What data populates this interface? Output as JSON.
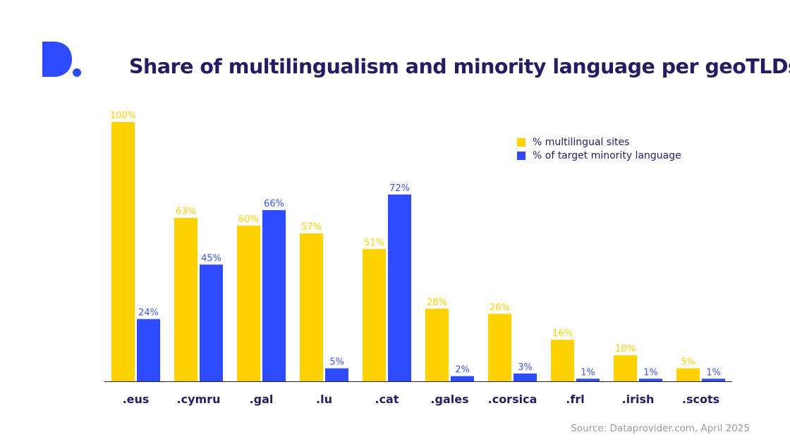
{
  "title": "Share of multilingualism and minority language per geoTLDs",
  "source": "Source: Dataprovider.com, April 2025",
  "logo_letter": "D",
  "colors": {
    "multilingual": "#FFD200",
    "minority": "#2E4BFF",
    "title": "#2a1a63",
    "label_blue": "#3b56ff"
  },
  "chart_data": {
    "type": "bar",
    "categories": [
      ".eus",
      ".cymru",
      ".gal",
      ".lu",
      ".cat",
      ".gales",
      ".corsica",
      ".frl",
      ".irish",
      ".scots"
    ],
    "series": [
      {
        "name": "% multilingual sites",
        "values": [
          100,
          63,
          60,
          57,
          51,
          28,
          26,
          16,
          10,
          5
        ],
        "labels": [
          "100%",
          "63%",
          "60%",
          "57%",
          "51%",
          "28%",
          "26%",
          "16%",
          "10%",
          "5%"
        ]
      },
      {
        "name": "% of target minority language",
        "values": [
          24,
          45,
          66,
          5,
          72,
          2,
          3,
          1,
          1,
          1
        ],
        "labels": [
          "24%",
          "45%",
          "66%",
          "5%",
          "72%",
          "2%",
          "3%",
          "1%",
          "1%",
          "1%"
        ]
      }
    ],
    "ylim": [
      0,
      100
    ],
    "legend_position": "top-right",
    "grid": false
  }
}
